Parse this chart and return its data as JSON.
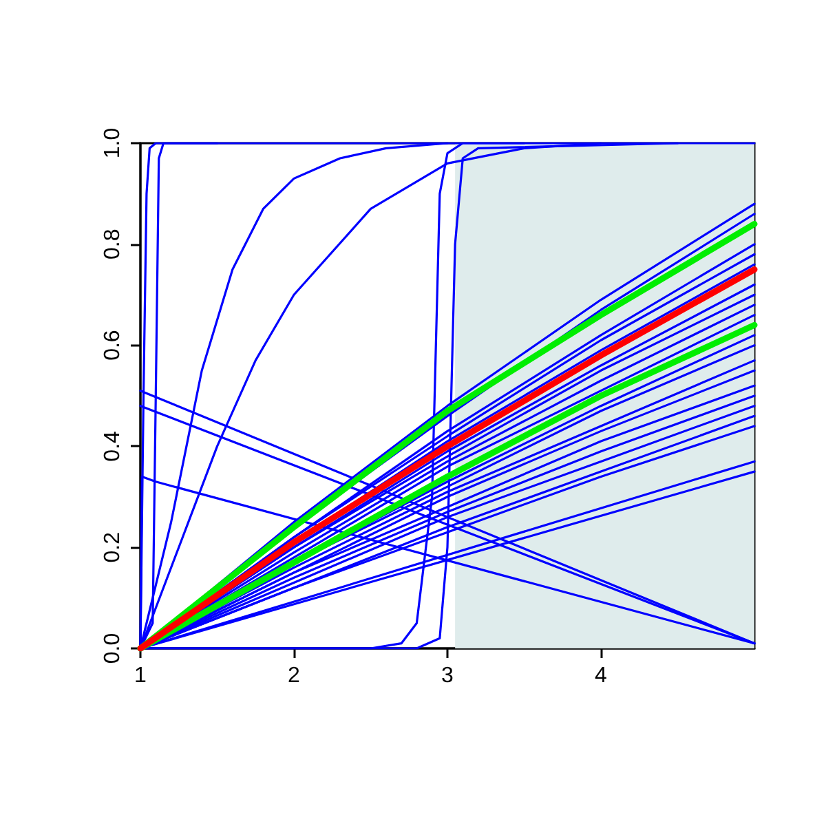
{
  "chart_data": {
    "type": "line",
    "xlim": [
      1,
      5
    ],
    "xticks": [
      1,
      2,
      3,
      4
    ],
    "ylim": [
      0,
      1
    ],
    "yticks": [
      {
        "value": 0,
        "label": "0.0"
      },
      {
        "value": 0.2,
        "label": "0.2"
      },
      {
        "value": 0.4,
        "label": "0.4"
      },
      {
        "value": 0.6,
        "label": "0.6"
      },
      {
        "value": 0.8,
        "label": "0.8"
      },
      {
        "value": 1,
        "label": "1.0"
      }
    ],
    "grid": false,
    "marker": "none",
    "line_style": "solid",
    "bands": [
      {
        "axis": "x",
        "from": 3.05,
        "to": 5,
        "color": "#dfecec"
      }
    ],
    "series": [
      {
        "color": "#0000ff",
        "x": [
          1,
          1.02,
          1.04,
          1.06,
          1.1,
          5
        ],
        "values": [
          0,
          0.5,
          0.9,
          0.99,
          1,
          1
        ]
      },
      {
        "color": "#0000ff",
        "x": [
          1,
          1.08,
          1.1,
          1.12,
          1.15,
          1.5
        ],
        "values": [
          0,
          0.05,
          0.5,
          0.97,
          1,
          1
        ]
      },
      {
        "color": "#0000ff",
        "x": [
          1,
          1.2,
          1.4,
          1.6,
          1.8,
          2,
          2.3,
          2.6,
          3
        ],
        "values": [
          0,
          0.25,
          0.55,
          0.75,
          0.87,
          0.93,
          0.97,
          0.99,
          1
        ]
      },
      {
        "color": "#0000ff",
        "x": [
          1,
          1.25,
          1.5,
          1.75,
          2,
          2.5,
          3,
          3.5,
          4
        ],
        "values": [
          0,
          0.2,
          0.4,
          0.57,
          0.7,
          0.87,
          0.96,
          0.99,
          1
        ]
      },
      {
        "color": "#0000ff",
        "x": [
          1,
          2.5,
          2.7,
          2.8,
          2.9,
          2.95,
          3,
          3.1,
          3.5
        ],
        "values": [
          0,
          0,
          0.01,
          0.05,
          0.3,
          0.9,
          0.98,
          1,
          1
        ]
      },
      {
        "color": "#0000ff",
        "x": [
          1,
          2.8,
          2.95,
          3,
          3.05,
          3.1,
          3.2,
          4.5
        ],
        "values": [
          0,
          0,
          0.02,
          0.2,
          0.8,
          0.97,
          0.99,
          1
        ]
      },
      {
        "color": "#0000ff",
        "x": [
          1,
          5
        ],
        "values": [
          0.51,
          0.01
        ]
      },
      {
        "color": "#0000ff",
        "x": [
          1,
          5
        ],
        "values": [
          0.48,
          0.01
        ]
      },
      {
        "color": "#0000ff",
        "x": [
          1,
          1.01,
          1.1,
          5
        ],
        "values": [
          0,
          0.34,
          0.33,
          0.01
        ]
      },
      {
        "color": "#0000ff",
        "x": [
          1,
          2,
          3,
          4,
          5
        ],
        "values": [
          0,
          0.25,
          0.48,
          0.69,
          0.88
        ]
      },
      {
        "color": "#0000ff",
        "x": [
          1,
          2,
          3,
          4,
          5
        ],
        "values": [
          0,
          0.24,
          0.46,
          0.67,
          0.86
        ]
      },
      {
        "color": "#0000ff",
        "x": [
          1,
          2,
          3,
          4,
          5
        ],
        "values": [
          0,
          0.22,
          0.43,
          0.62,
          0.8
        ]
      },
      {
        "color": "#0000ff",
        "x": [
          1,
          2,
          3,
          4,
          5
        ],
        "values": [
          0,
          0.22,
          0.42,
          0.61,
          0.78
        ]
      },
      {
        "color": "#0000ff",
        "x": [
          1,
          2,
          3,
          4,
          5
        ],
        "values": [
          0,
          0.21,
          0.41,
          0.59,
          0.76
        ]
      },
      {
        "color": "#0000ff",
        "x": [
          1,
          2,
          3,
          4,
          5
        ],
        "values": [
          0,
          0.2,
          0.39,
          0.56,
          0.72
        ]
      },
      {
        "color": "#0000ff",
        "x": [
          1,
          2,
          3,
          4,
          5
        ],
        "values": [
          0,
          0.2,
          0.38,
          0.55,
          0.7
        ]
      },
      {
        "color": "#0000ff",
        "x": [
          1,
          2,
          3,
          4,
          5
        ],
        "values": [
          0,
          0.19,
          0.37,
          0.53,
          0.68
        ]
      },
      {
        "color": "#0000ff",
        "x": [
          1,
          2,
          3,
          4,
          5
        ],
        "values": [
          0,
          0.18,
          0.36,
          0.51,
          0.66
        ]
      },
      {
        "color": "#0000ff",
        "x": [
          1,
          2,
          3,
          4,
          5
        ],
        "values": [
          0,
          0.17,
          0.33,
          0.48,
          0.62
        ]
      },
      {
        "color": "#0000ff",
        "x": [
          1,
          2,
          3,
          4,
          5
        ],
        "values": [
          0,
          0.17,
          0.32,
          0.47,
          0.6
        ]
      },
      {
        "color": "#0000ff",
        "x": [
          1,
          2,
          3,
          4,
          5
        ],
        "values": [
          0,
          0.16,
          0.31,
          0.44,
          0.57
        ]
      },
      {
        "color": "#0000ff",
        "x": [
          1,
          2,
          3,
          4,
          5
        ],
        "values": [
          0,
          0.15,
          0.3,
          0.43,
          0.55
        ]
      },
      {
        "color": "#0000ff",
        "x": [
          1,
          2,
          3,
          4,
          5
        ],
        "values": [
          0,
          0.15,
          0.28,
          0.41,
          0.52
        ]
      },
      {
        "color": "#0000ff",
        "x": [
          1,
          2,
          3,
          4,
          5
        ],
        "values": [
          0,
          0.14,
          0.27,
          0.39,
          0.5
        ]
      },
      {
        "color": "#0000ff",
        "x": [
          1,
          2,
          3,
          4,
          5
        ],
        "values": [
          0,
          0.13,
          0.26,
          0.37,
          0.48
        ]
      },
      {
        "color": "#0000ff",
        "x": [
          1,
          2,
          3,
          4,
          5
        ],
        "values": [
          0,
          0.12,
          0.24,
          0.35,
          0.46
        ]
      },
      {
        "color": "#0000ff",
        "x": [
          1,
          2,
          3,
          4,
          5
        ],
        "values": [
          0,
          0.12,
          0.23,
          0.34,
          0.44
        ]
      },
      {
        "color": "#0000ff",
        "x": [
          1,
          5
        ],
        "values": [
          0,
          0.37
        ]
      },
      {
        "color": "#0000ff",
        "x": [
          1,
          5
        ],
        "values": [
          0,
          0.35
        ]
      },
      {
        "color": "#00ee00",
        "x": [
          1,
          2,
          3,
          4,
          5
        ],
        "values": [
          0,
          0.24,
          0.47,
          0.66,
          0.84
        ]
      },
      {
        "color": "#00ee00",
        "x": [
          1,
          2,
          3,
          4,
          5
        ],
        "values": [
          0,
          0.17,
          0.34,
          0.5,
          0.64
        ]
      },
      {
        "color": "#ff0000",
        "x": [
          1,
          2,
          3,
          4,
          5
        ],
        "values": [
          0,
          0.21,
          0.4,
          0.58,
          0.75
        ]
      }
    ]
  }
}
